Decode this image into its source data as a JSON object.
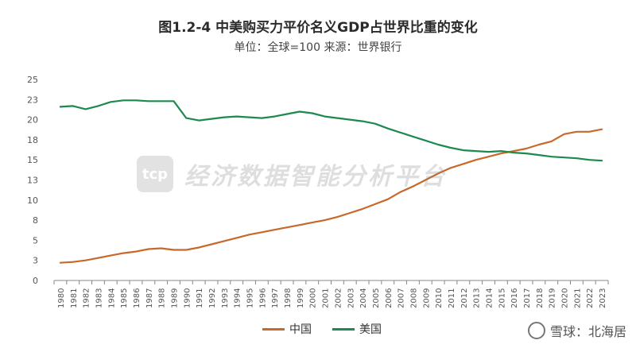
{
  "title": "图1.2-4 中美购买力平价名义GDP占世界比重的变化",
  "subtitle": "单位：全球=100 来源：世界银行",
  "watermark": {
    "logo_text": "tcp",
    "text": "经济数据智能分析平台"
  },
  "credit": {
    "text": "雪球：北海居",
    "icon": "snowball-icon"
  },
  "colors": {
    "china": "#c8682a",
    "usa": "#1c8a4e",
    "axis": "#888888"
  },
  "chart_data": {
    "type": "line",
    "x": [
      "1980",
      "1981",
      "1982",
      "1983",
      "1984",
      "1985",
      "1986",
      "1987",
      "1988",
      "1989",
      "1990",
      "1991",
      "1992",
      "1993",
      "1994",
      "1995",
      "1996",
      "1997",
      "1998",
      "1999",
      "2000",
      "2001",
      "2002",
      "2003",
      "2004",
      "2005",
      "2006",
      "2007",
      "2008",
      "2009",
      "2010",
      "2011",
      "2012",
      "2013",
      "2014",
      "2015",
      "2016",
      "2017",
      "2018",
      "2019",
      "2020",
      "2021",
      "2022",
      "2023"
    ],
    "yticks": [
      "0",
      "3",
      "5",
      "8",
      "10",
      "13",
      "15",
      "18",
      "20",
      "23",
      "25"
    ],
    "ylim": [
      0,
      25
    ],
    "series": [
      {
        "name": "中国",
        "values": [
          2.2,
          2.3,
          2.5,
          2.8,
          3.1,
          3.4,
          3.6,
          3.9,
          4.0,
          3.8,
          3.8,
          4.1,
          4.5,
          4.9,
          5.3,
          5.7,
          6.0,
          6.3,
          6.6,
          6.9,
          7.2,
          7.5,
          7.9,
          8.4,
          8.9,
          9.5,
          10.1,
          11.0,
          11.7,
          12.5,
          13.3,
          14.0,
          14.5,
          15.0,
          15.4,
          15.8,
          16.1,
          16.4,
          16.9,
          17.3,
          18.2,
          18.5,
          18.5,
          18.8
        ]
      },
      {
        "name": "美国",
        "values": [
          21.6,
          21.7,
          21.3,
          21.7,
          22.2,
          22.4,
          22.4,
          22.3,
          22.3,
          22.3,
          20.2,
          19.9,
          20.1,
          20.3,
          20.4,
          20.3,
          20.2,
          20.4,
          20.7,
          21.0,
          20.8,
          20.4,
          20.2,
          20.0,
          19.8,
          19.5,
          18.9,
          18.4,
          17.9,
          17.4,
          16.9,
          16.5,
          16.2,
          16.1,
          16.0,
          16.1,
          15.9,
          15.8,
          15.6,
          15.4,
          15.3,
          15.2,
          15.0,
          14.9
        ]
      }
    ]
  }
}
